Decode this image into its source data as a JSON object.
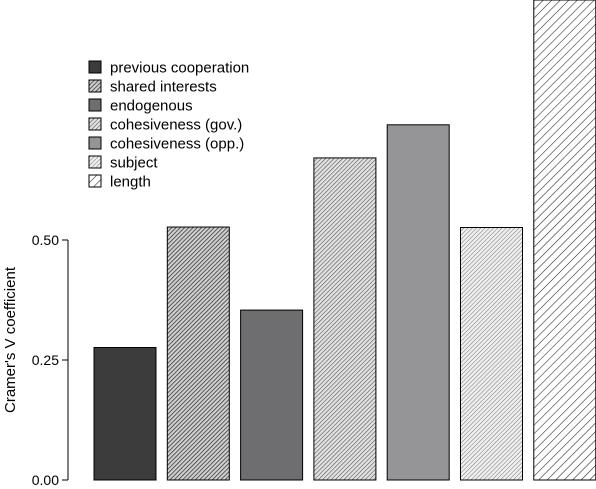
{
  "chart_data": {
    "type": "bar",
    "ylabel": "Cramer's V coefficient",
    "xlabel": "",
    "ylim": [
      0,
      1.0
    ],
    "yticks": [
      "0.00",
      "0.25",
      "0.50"
    ],
    "ytick_values": [
      0,
      0.25,
      0.5
    ],
    "categories": [
      "previous cooperation",
      "shared interests",
      "endogenous",
      "cohesiveness (gov.)",
      "cohesiveness (opp.)",
      "subject",
      "length"
    ],
    "values": [
      0.276,
      0.527,
      0.354,
      0.671,
      0.74,
      0.526,
      1.0
    ],
    "legend_position": "top-left",
    "grid": false,
    "fills": [
      {
        "color": "#3c3c3c",
        "pattern": "solid"
      },
      {
        "color": "#bdbdbd",
        "pattern": "dense-hatch-dark"
      },
      {
        "color": "#6e6e70",
        "pattern": "solid"
      },
      {
        "color": "#c8c8c8",
        "pattern": "dense-hatch"
      },
      {
        "color": "#959597",
        "pattern": "solid"
      },
      {
        "color": "#d6d6d6",
        "pattern": "dense-hatch-light"
      },
      {
        "color": "#ffffff",
        "pattern": "sparse-hatch"
      }
    ]
  }
}
